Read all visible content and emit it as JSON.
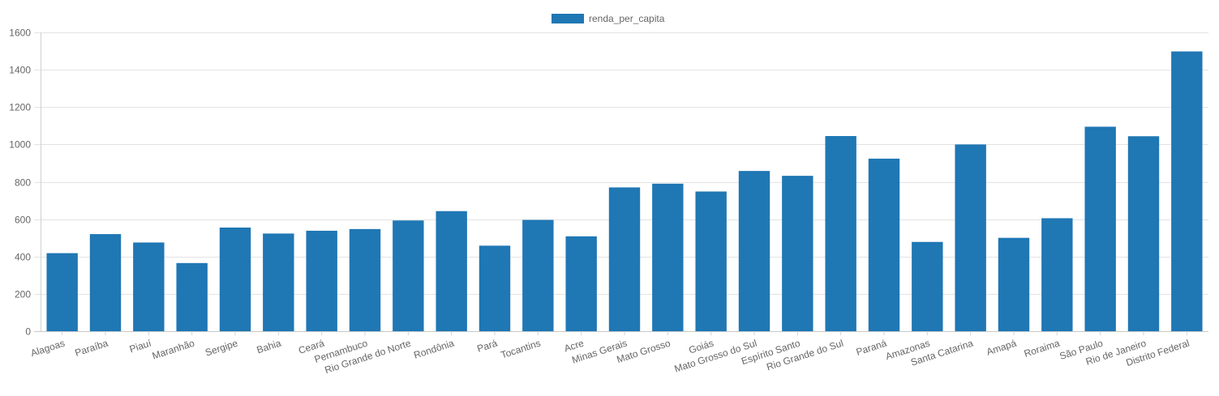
{
  "chart_data": {
    "type": "bar",
    "title": "",
    "xlabel": "",
    "ylabel": "",
    "ylim": [
      0,
      1600
    ],
    "yticks": [
      0,
      200,
      400,
      600,
      800,
      1000,
      1200,
      1400,
      1600
    ],
    "grid": true,
    "legend_position": "top-center",
    "categories": [
      "Alagoas",
      "Paraíba",
      "Piauí",
      "Maranhão",
      "Sergipe",
      "Bahia",
      "Ceará",
      "Pernambuco",
      "Rio Grande do Norte",
      "Rondônia",
      "Pará",
      "Tocantins",
      "Acre",
      "Minas Gerais",
      "Mato Grosso",
      "Goiás",
      "Mato Grosso do Sul",
      "Espírito Santo",
      "Rio Grande do Sul",
      "Paraná",
      "Amazonas",
      "Santa Catarina",
      "Amapá",
      "Roraima",
      "São Paulo",
      "Rio de Janeiro",
      "Distrito Federal"
    ],
    "series": [
      {
        "name": "renda_per_capita",
        "color": "#1f77b4",
        "values": [
          418,
          520,
          475,
          365,
          555,
          523,
          538,
          547,
          593,
          643,
          458,
          596,
          508,
          770,
          790,
          748,
          858,
          832,
          1045,
          924,
          478,
          1000,
          500,
          605,
          1095,
          1044,
          1498
        ]
      }
    ]
  }
}
